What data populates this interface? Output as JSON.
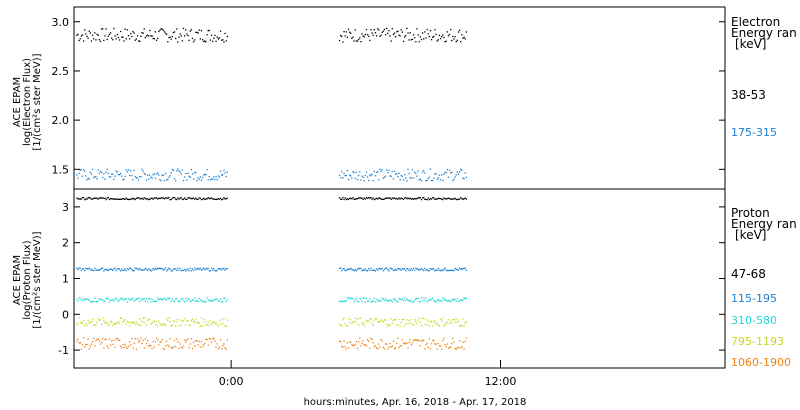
{
  "chart_data": [
    {
      "type": "scatter",
      "panel": "electron",
      "ylabel_lines": [
        "ACE EPAM",
        "log(Electron Flux)",
        "[1/(cm²s ster MeV)]"
      ],
      "ylim": [
        1.3,
        3.15
      ],
      "yticks": [
        1.5,
        2.0,
        2.5,
        3.0
      ],
      "ytick_labels": [
        "1.5",
        "2.0",
        "2.5",
        "3.0"
      ],
      "legend": {
        "title_lines": [
          "Electron",
          "Energy ran"
        ],
        "unit": "[keV]"
      },
      "series": [
        {
          "name": "38-53",
          "color": "#000000",
          "level": 2.87,
          "scatter": 0.07
        },
        {
          "name": "175-315",
          "color": "#1e80d0",
          "level": 1.45,
          "scatter": 0.06
        }
      ]
    },
    {
      "type": "scatter",
      "panel": "proton",
      "ylabel_lines": [
        "ACE EPAM",
        "log(Proton Flux)",
        "[1/(cm²s ster MeV)]"
      ],
      "ylim": [
        -1.5,
        3.5
      ],
      "yticks": [
        -1,
        0,
        1,
        2,
        3
      ],
      "ytick_labels": [
        "-1",
        "0",
        "1",
        "2",
        "3"
      ],
      "legend": {
        "title_lines": [
          "Proton",
          "Energy ran"
        ],
        "unit": "[keV]"
      },
      "series": [
        {
          "name": "47-68",
          "color": "#000000",
          "level": 3.25,
          "scatter": 0.03
        },
        {
          "name": "115-195",
          "color": "#1e80d0",
          "level": 1.27,
          "scatter": 0.04
        },
        {
          "name": "310-580",
          "color": "#20d8d8",
          "level": 0.42,
          "scatter": 0.06
        },
        {
          "name": "795-1193",
          "color": "#c8d820",
          "level": -0.2,
          "scatter": 0.12
        },
        {
          "name": "1060-1900",
          "color": "#f08010",
          "level": -0.8,
          "scatter": 0.16
        }
      ]
    }
  ],
  "x_axis": {
    "title": "hours:minutes, Apr. 16, 2018 - Apr. 17, 2018",
    "range_hours": [
      -7,
      22
    ],
    "ticks": [
      0,
      12
    ],
    "tick_labels": [
      "0:00",
      "12:00"
    ],
    "data_segments_hours": [
      [
        -6.9,
        -0.2
      ],
      [
        4.8,
        10.5
      ]
    ]
  }
}
